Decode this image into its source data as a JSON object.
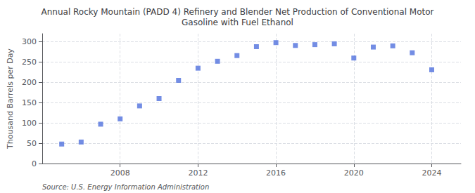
{
  "chart_data": {
    "type": "scatter",
    "title": "Annual Rocky Mountain (PADD 4) Refinery and Blender Net Production of Conventional Motor\nGasoline with Fuel Ethanol",
    "ylabel": "Thousand Barrels per Day",
    "annotations": [
      "Source: U.S. Energy Information Administration"
    ],
    "x": [
      2005,
      2006,
      2007,
      2008,
      2009,
      2010,
      2011,
      2012,
      2013,
      2014,
      2015,
      2016,
      2017,
      2018,
      2019,
      2020,
      2021,
      2022,
      2023,
      2024
    ],
    "values": [
      48,
      53,
      97,
      110,
      142,
      160,
      205,
      235,
      252,
      266,
      288,
      298,
      291,
      293,
      295,
      260,
      287,
      290,
      273,
      231
    ],
    "marker": "square",
    "xlim": [
      2004.0,
      2025.5
    ],
    "xticks": [
      2008,
      2012,
      2016,
      2020,
      2024
    ],
    "ylim": [
      0,
      320
    ],
    "yticks": [
      0,
      50,
      100,
      150,
      200,
      250,
      300
    ],
    "grid": true
  }
}
